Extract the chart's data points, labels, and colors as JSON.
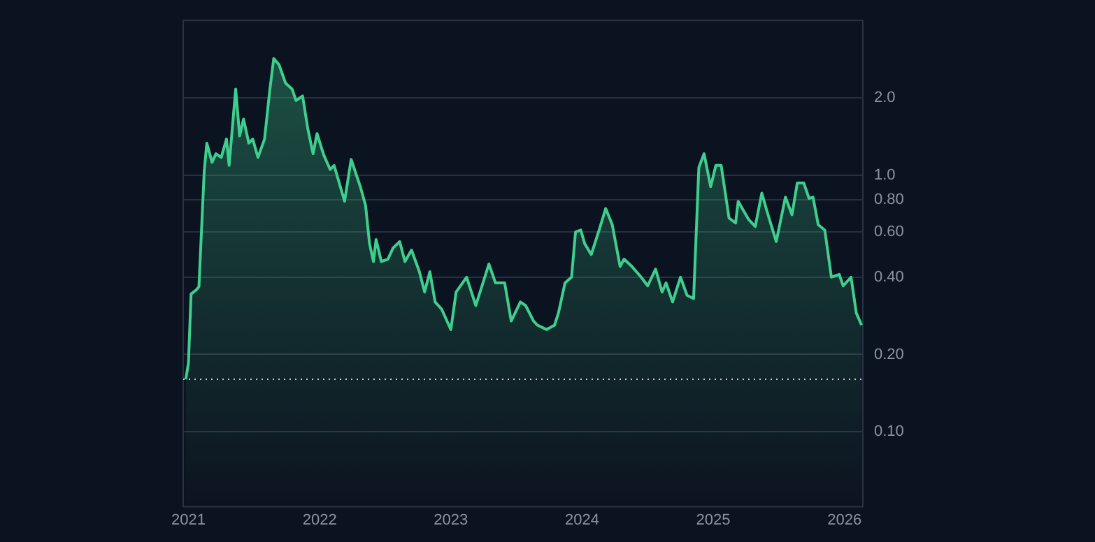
{
  "chart_data": {
    "type": "area",
    "log": "y",
    "grid": "y",
    "legend": false,
    "marker": "none",
    "line_style": "solid",
    "xlim": [
      2020.96,
      2026.14
    ],
    "xticks": [
      2021,
      2022,
      2023,
      2024,
      2025,
      2026
    ],
    "ylim": [
      0.051,
      4.0
    ],
    "yticks": [
      {
        "value": 0.1,
        "label": "0.10"
      },
      {
        "value": 0.2,
        "label": "0.20"
      },
      {
        "value": 0.4,
        "label": "0.40"
      },
      {
        "value": 0.6,
        "label": "0.60"
      },
      {
        "value": 0.8,
        "label": "0.80"
      },
      {
        "value": 1,
        "label": "1.0"
      },
      {
        "value": 2,
        "label": "2.0"
      }
    ],
    "ref_lines": [
      {
        "axis": "y",
        "value": 0.16,
        "label": null,
        "color": "#c8ccd4",
        "line_style": "dotted"
      }
    ],
    "series": [
      {
        "color": "#3ecf8e",
        "x": [
          2020.98,
          2021.0,
          2021.02,
          2021.06,
          2021.08,
          2021.12,
          2021.14,
          2021.18,
          2021.21,
          2021.25,
          2021.29,
          2021.31,
          2021.36,
          2021.39,
          2021.42,
          2021.46,
          2021.49,
          2021.53,
          2021.58,
          2021.62,
          2021.65,
          2021.69,
          2021.74,
          2021.79,
          2021.82,
          2021.87,
          2021.91,
          2021.95,
          2021.98,
          2022.03,
          2022.08,
          2022.11,
          2022.19,
          2022.24,
          2022.31,
          2022.35,
          2022.38,
          2022.41,
          2022.43,
          2022.47,
          2022.52,
          2022.56,
          2022.61,
          2022.65,
          2022.7,
          2022.76,
          2022.8,
          2022.84,
          2022.88,
          2022.93,
          2023.0,
          2023.04,
          2023.12,
          2023.19,
          2023.29,
          2023.34,
          2023.41,
          2023.46,
          2023.53,
          2023.57,
          2023.63,
          2023.66,
          2023.73,
          2023.79,
          2023.82,
          2023.87,
          2023.92,
          2023.95,
          2023.99,
          2024.02,
          2024.07,
          2024.13,
          2024.18,
          2024.23,
          2024.29,
          2024.32,
          2024.38,
          2024.45,
          2024.5,
          2024.56,
          2024.61,
          2024.64,
          2024.69,
          2024.75,
          2024.8,
          2024.85,
          2024.89,
          2024.93,
          2024.98,
          2025.02,
          2025.06,
          2025.12,
          2025.17,
          2025.19,
          2025.27,
          2025.32,
          2025.37,
          2025.41,
          2025.48,
          2025.55,
          2025.6,
          2025.64,
          2025.69,
          2025.73,
          2025.76,
          2025.8,
          2025.85,
          2025.9,
          2025.96,
          2025.99,
          2026.05,
          2026.09,
          2026.13
        ],
        "values": [
          0.16,
          0.185,
          0.344,
          0.357,
          0.367,
          1.03,
          1.33,
          1.12,
          1.21,
          1.17,
          1.38,
          1.09,
          2.16,
          1.42,
          1.65,
          1.33,
          1.38,
          1.17,
          1.38,
          2.14,
          2.84,
          2.69,
          2.28,
          2.16,
          1.95,
          2.03,
          1.51,
          1.21,
          1.45,
          1.2,
          1.05,
          1.09,
          0.79,
          1.15,
          0.9,
          0.76,
          0.54,
          0.46,
          0.56,
          0.46,
          0.47,
          0.52,
          0.55,
          0.46,
          0.51,
          0.42,
          0.35,
          0.42,
          0.32,
          0.3,
          0.25,
          0.35,
          0.4,
          0.31,
          0.45,
          0.38,
          0.38,
          0.27,
          0.32,
          0.31,
          0.27,
          0.26,
          0.25,
          0.26,
          0.29,
          0.38,
          0.4,
          0.6,
          0.61,
          0.54,
          0.49,
          0.61,
          0.74,
          0.64,
          0.44,
          0.47,
          0.44,
          0.4,
          0.37,
          0.43,
          0.35,
          0.38,
          0.32,
          0.4,
          0.34,
          0.33,
          1.07,
          1.21,
          0.9,
          1.09,
          1.09,
          0.68,
          0.65,
          0.79,
          0.67,
          0.63,
          0.85,
          0.72,
          0.55,
          0.82,
          0.7,
          0.93,
          0.93,
          0.81,
          0.82,
          0.64,
          0.61,
          0.4,
          0.41,
          0.37,
          0.4,
          0.29,
          0.26
        ]
      }
    ]
  }
}
